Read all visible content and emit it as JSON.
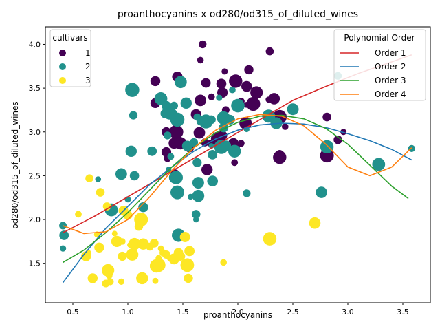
{
  "chart_data": {
    "type": "scatter",
    "title": "proanthocyanins x od280/od315_of_diluted_wines",
    "xlabel": "proanthocyanins",
    "ylabel": "od280/od315_of_diluted_wines",
    "xlim": [
      0.25,
      3.75
    ],
    "ylim": [
      1.05,
      4.2
    ],
    "xticks": [
      "0.5",
      "1.0",
      "1.5",
      "2.0",
      "2.5",
      "3.0",
      "3.5"
    ],
    "yticks": [
      "1.5",
      "2.0",
      "2.5",
      "3.0",
      "3.5",
      "4.0"
    ],
    "grid": false,
    "hue_legend": {
      "title": "cultivars",
      "placement": "upper-left",
      "entries": [
        {
          "label": "1",
          "color": "#440154"
        },
        {
          "label": "2",
          "color": "#21918c"
        },
        {
          "label": "3",
          "color": "#fde725"
        }
      ]
    },
    "fit_legend": {
      "title": "Polynomial Order",
      "placement": "upper-right"
    },
    "fits": [
      {
        "name": "Order 1",
        "color": "#d62728",
        "x": [
          0.41,
          0.7,
          1.0,
          1.3,
          1.6,
          1.9,
          2.2,
          2.5,
          2.8,
          3.1,
          3.4,
          3.58
        ],
        "y": [
          1.85,
          2.04,
          2.26,
          2.48,
          2.7,
          2.92,
          3.14,
          3.36,
          3.52,
          3.67,
          3.8,
          3.88
        ]
      },
      {
        "name": "Order 2",
        "color": "#1f77b4",
        "x": [
          0.41,
          0.6,
          0.8,
          1.0,
          1.2,
          1.4,
          1.6,
          1.8,
          2.0,
          2.2,
          2.4,
          2.6,
          2.8,
          3.0,
          3.2,
          3.4,
          3.58
        ],
        "y": [
          1.28,
          1.6,
          1.9,
          2.15,
          2.4,
          2.6,
          2.78,
          2.92,
          3.02,
          3.08,
          3.1,
          3.09,
          3.05,
          2.98,
          2.9,
          2.8,
          2.68
        ]
      },
      {
        "name": "Order 3",
        "color": "#2ca02c",
        "x": [
          0.41,
          0.6,
          0.8,
          1.0,
          1.2,
          1.4,
          1.6,
          1.8,
          2.0,
          2.2,
          2.4,
          2.6,
          2.8,
          3.0,
          3.2,
          3.4,
          3.55
        ],
        "y": [
          1.51,
          1.65,
          1.85,
          2.08,
          2.34,
          2.6,
          2.82,
          2.99,
          3.11,
          3.18,
          3.19,
          3.15,
          3.04,
          2.86,
          2.62,
          2.38,
          2.24
        ]
      },
      {
        "name": "Order 4",
        "color": "#ff7f0e",
        "x": [
          0.41,
          0.6,
          0.8,
          1.0,
          1.2,
          1.4,
          1.6,
          1.8,
          2.0,
          2.2,
          2.4,
          2.6,
          2.8,
          3.0,
          3.2,
          3.4,
          3.58
        ],
        "y": [
          1.93,
          1.84,
          1.86,
          2.0,
          2.26,
          2.56,
          2.82,
          3.02,
          3.15,
          3.2,
          3.18,
          3.07,
          2.86,
          2.6,
          2.5,
          2.6,
          2.82
        ]
      }
    ],
    "points": {
      "1": [
        [
          1.25,
          3.58
        ],
        [
          1.45,
          3.63
        ],
        [
          1.66,
          3.82
        ],
        [
          1.68,
          4.0
        ],
        [
          1.71,
          3.56
        ],
        [
          1.85,
          3.55
        ],
        [
          1.88,
          3.69
        ],
        [
          1.98,
          3.58
        ],
        [
          2.08,
          3.52
        ],
        [
          2.1,
          3.71
        ],
        [
          2.29,
          3.92
        ],
        [
          2.17,
          3.45
        ],
        [
          2.33,
          3.38
        ],
        [
          2.28,
          3.37
        ],
        [
          1.25,
          3.33
        ],
        [
          1.45,
          3.17
        ],
        [
          1.66,
          3.36
        ],
        [
          1.76,
          3.4
        ],
        [
          1.86,
          3.45
        ],
        [
          1.99,
          3.31
        ],
        [
          2.03,
          3.35
        ],
        [
          2.08,
          3.31
        ],
        [
          2.14,
          3.32
        ],
        [
          2.38,
          3.17
        ],
        [
          2.43,
          3.06
        ],
        [
          1.35,
          3.0
        ],
        [
          1.44,
          3.0
        ],
        [
          1.52,
          2.85
        ],
        [
          1.56,
          2.82
        ],
        [
          1.62,
          3.2
        ],
        [
          1.65,
          2.99
        ],
        [
          1.7,
          2.88
        ],
        [
          1.75,
          2.87
        ],
        [
          1.82,
          2.92
        ],
        [
          1.86,
          2.96
        ],
        [
          1.89,
          3.25
        ],
        [
          1.96,
          2.87
        ],
        [
          1.98,
          2.82
        ],
        [
          2.03,
          2.87
        ],
        [
          2.07,
          3.1
        ],
        [
          2.81,
          3.17
        ],
        [
          2.91,
          2.91
        ],
        [
          2.96,
          3.0
        ],
        [
          2.81,
          2.73
        ],
        [
          2.38,
          2.75
        ],
        [
          2.38,
          2.71
        ],
        [
          1.35,
          2.77
        ],
        [
          1.36,
          2.7
        ],
        [
          1.42,
          2.87
        ],
        [
          1.43,
          2.52
        ],
        [
          1.48,
          2.87
        ],
        [
          1.72,
          2.57
        ],
        [
          1.97,
          2.65
        ]
      ],
      "2": [
        [
          0.41,
          1.93
        ],
        [
          0.42,
          1.82
        ],
        [
          0.41,
          1.67
        ],
        [
          0.73,
          2.46
        ],
        [
          0.83,
          2.12
        ],
        [
          0.94,
          2.52
        ],
        [
          1.03,
          2.78
        ],
        [
          1.04,
          3.48
        ],
        [
          1.05,
          3.19
        ],
        [
          1.06,
          2.5
        ],
        [
          1.14,
          2.14
        ],
        [
          1.22,
          2.78
        ],
        [
          1.3,
          3.38
        ],
        [
          1.34,
          3.21
        ],
        [
          1.35,
          3.3
        ],
        [
          1.36,
          2.96
        ],
        [
          1.38,
          3.28
        ],
        [
          1.38,
          3.21
        ],
        [
          1.39,
          2.72
        ],
        [
          1.42,
          3.3
        ],
        [
          1.43,
          2.48
        ],
        [
          1.44,
          2.48
        ],
        [
          1.45,
          3.14
        ],
        [
          1.45,
          2.31
        ],
        [
          1.46,
          1.82
        ],
        [
          1.48,
          3.57
        ],
        [
          1.53,
          3.33
        ],
        [
          1.54,
          2.84
        ],
        [
          1.57,
          2.26
        ],
        [
          1.6,
          2.88
        ],
        [
          1.62,
          2.06
        ],
        [
          1.63,
          3.17
        ],
        [
          1.63,
          2.65
        ],
        [
          1.64,
          2.42
        ],
        [
          1.64,
          2.27
        ],
        [
          1.66,
          3.12
        ],
        [
          1.71,
          3.12
        ],
        [
          1.76,
          2.84
        ],
        [
          1.76,
          3.14
        ],
        [
          1.77,
          2.44
        ],
        [
          1.77,
          2.74
        ],
        [
          1.83,
          3.39
        ],
        [
          1.85,
          2.83
        ],
        [
          1.87,
          3.05
        ],
        [
          1.87,
          3.16
        ],
        [
          1.89,
          2.84
        ],
        [
          1.93,
          3.14
        ],
        [
          1.95,
          3.48
        ],
        [
          1.97,
          2.78
        ],
        [
          2.0,
          3.3
        ],
        [
          2.08,
          2.3
        ],
        [
          2.08,
          3.03
        ],
        [
          2.35,
          3.08
        ],
        [
          2.35,
          3.1
        ],
        [
          2.5,
          3.26
        ],
        [
          2.76,
          2.31
        ],
        [
          2.81,
          2.83
        ],
        [
          2.91,
          3.64
        ],
        [
          3.28,
          2.63
        ],
        [
          3.58,
          2.81
        ],
        [
          1.62,
          2.0
        ],
        [
          1.0,
          2.23
        ],
        [
          1.37,
          2.57
        ],
        [
          1.4,
          3.21
        ],
        [
          0.85,
          2.11
        ],
        [
          2.28,
          3.18
        ]
      ],
      "3": [
        [
          0.55,
          2.06
        ],
        [
          0.62,
          1.58
        ],
        [
          0.64,
          1.62
        ],
        [
          0.65,
          2.47
        ],
        [
          0.68,
          1.33
        ],
        [
          0.72,
          1.83
        ],
        [
          0.75,
          2.31
        ],
        [
          0.8,
          1.27
        ],
        [
          0.81,
          2.15
        ],
        [
          0.82,
          1.42
        ],
        [
          0.83,
          1.36
        ],
        [
          0.84,
          1.29
        ],
        [
          0.88,
          1.84
        ],
        [
          0.9,
          1.75
        ],
        [
          0.94,
          1.29
        ],
        [
          0.95,
          1.58
        ],
        [
          0.95,
          1.75
        ],
        [
          0.96,
          2.1
        ],
        [
          1.0,
          2.05
        ],
        [
          1.02,
          1.71
        ],
        [
          1.04,
          1.6
        ],
        [
          1.05,
          1.59
        ],
        [
          1.06,
          1.72
        ],
        [
          1.1,
          1.92
        ],
        [
          1.12,
          2.0
        ],
        [
          1.13,
          1.33
        ],
        [
          1.14,
          1.72
        ],
        [
          1.2,
          1.69
        ],
        [
          1.24,
          1.73
        ],
        [
          1.25,
          1.3
        ],
        [
          1.26,
          1.47
        ],
        [
          1.28,
          1.56
        ],
        [
          1.3,
          1.67
        ],
        [
          1.32,
          1.62
        ],
        [
          1.35,
          1.6
        ],
        [
          1.38,
          1.56
        ],
        [
          1.42,
          1.55
        ],
        [
          1.46,
          1.62
        ],
        [
          1.48,
          1.58
        ],
        [
          1.52,
          1.8
        ],
        [
          1.54,
          1.48
        ],
        [
          1.56,
          1.64
        ],
        [
          1.55,
          1.33
        ],
        [
          1.87,
          1.51
        ],
        [
          2.29,
          1.78
        ],
        [
          2.7,
          1.96
        ],
        [
          0.74,
          1.68
        ],
        [
          1.28,
          1.48
        ]
      ]
    }
  }
}
